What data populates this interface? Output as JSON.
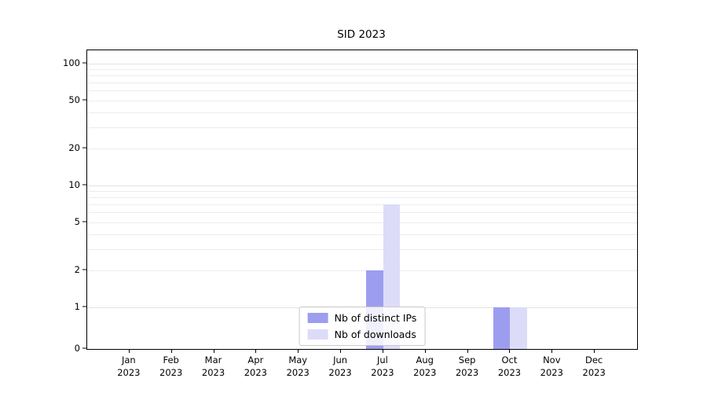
{
  "chart_data": {
    "type": "bar",
    "title": "SID 2023",
    "categories": [
      "Jan 2023",
      "Feb 2023",
      "Mar 2023",
      "Apr 2023",
      "May 2023",
      "Jun 2023",
      "Jul 2023",
      "Aug 2023",
      "Sep 2023",
      "Oct 2023",
      "Nov 2023",
      "Dec 2023"
    ],
    "series": [
      {
        "name": "Nb of distinct IPs",
        "color": "#9d9df0",
        "values": [
          0,
          0,
          0,
          0,
          0,
          0,
          2,
          0,
          0,
          1,
          0,
          0
        ]
      },
      {
        "name": "Nb of downloads",
        "color": "#dcdcf8",
        "values": [
          0,
          0,
          0,
          0,
          0,
          0,
          7,
          0,
          0,
          1,
          0,
          0
        ]
      }
    ],
    "yscale": "symlog",
    "yticks": [
      100,
      50,
      20,
      10,
      5,
      2,
      1,
      0
    ],
    "ylim": [
      0,
      128
    ],
    "grid": "horizontal-log-minor",
    "legend_position": "lower-center-inside"
  }
}
